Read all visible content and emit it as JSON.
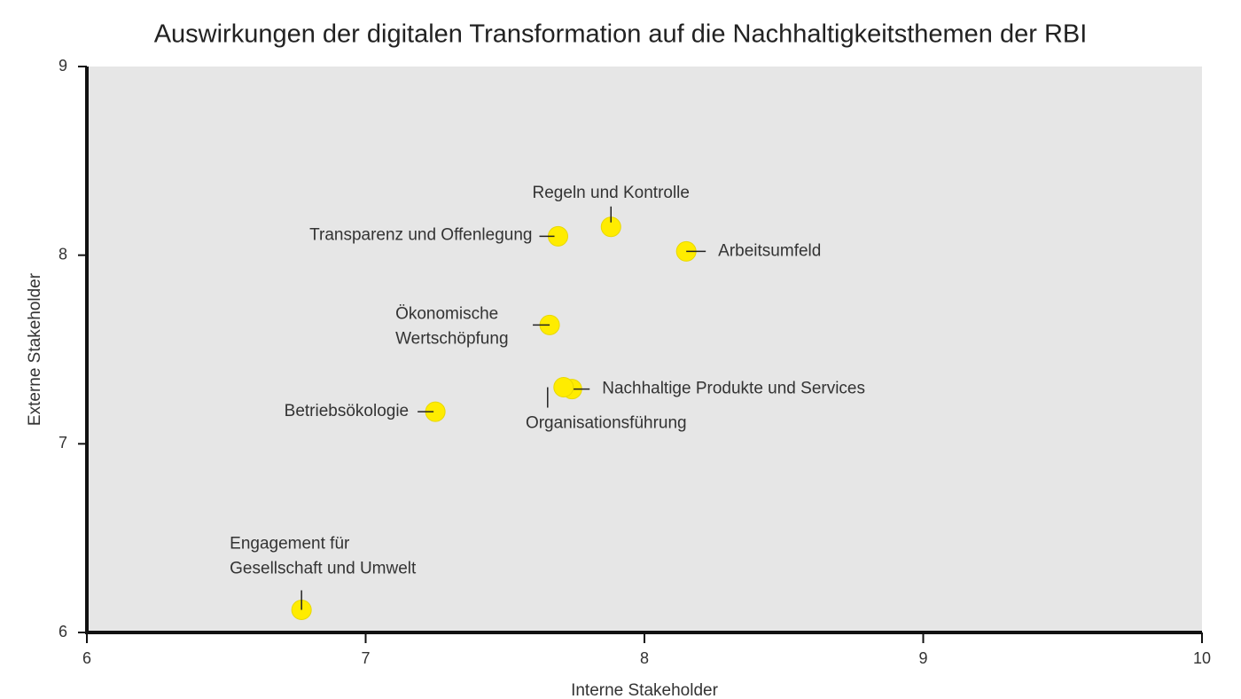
{
  "chart_data": {
    "type": "scatter",
    "title": "Auswirkungen der digitalen Transformation auf die Nachhaltigkeitsthemen der RBI",
    "x_label": "Interne Stakeholder",
    "y_label": "Externe Stakeholder",
    "color": "#ffec00",
    "x": [
      7.88,
      7.69,
      8.15,
      7.66,
      7.74,
      7.71,
      7.25,
      6.77
    ],
    "values": [
      8.15,
      8.1,
      8.02,
      7.63,
      7.29,
      7.3,
      7.17,
      6.12
    ],
    "point_labels": [
      [
        "Regeln und Kontrolle"
      ],
      [
        "Transparenz und Offenlegung"
      ],
      [
        "Arbeitsumfeld"
      ],
      [
        "Ökonomische",
        "Wertschöpfung"
      ],
      [
        "Nachhaltige Produkte und Services"
      ],
      [
        "Organisationsführung"
      ],
      [
        "Betriebsökologie"
      ],
      [
        "Engagement für",
        "Gesellschaft und Umwelt"
      ]
    ],
    "xlim": [
      6,
      10
    ],
    "ylim": [
      6,
      9
    ],
    "xticks": [
      6,
      7,
      8,
      9,
      10
    ],
    "yticks": [
      6,
      7,
      8,
      9
    ]
  }
}
